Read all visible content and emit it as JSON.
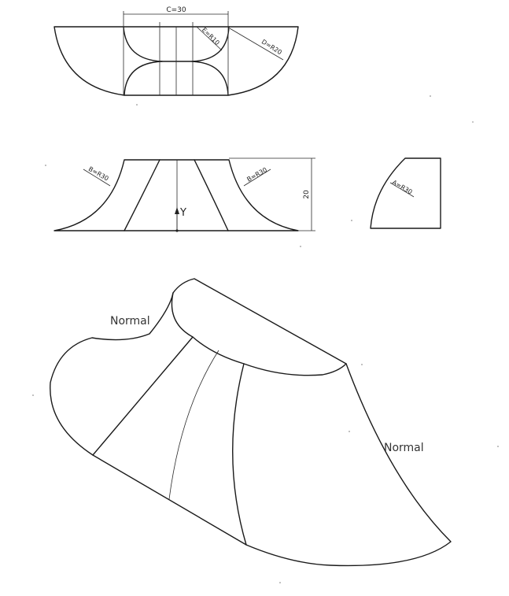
{
  "views": {
    "top": {
      "dim_c": "C=30",
      "dim_e": "E=R10",
      "dim_d": "D=R20"
    },
    "front": {
      "dim_b_left": "B=R30",
      "dim_b_right": "B=R30",
      "dim_height": "20",
      "axis_label": "Y"
    },
    "side": {
      "dim_a": "A=R30"
    },
    "iso": {
      "label_normal_top": "Normal",
      "label_normal_right": "Normal"
    }
  }
}
